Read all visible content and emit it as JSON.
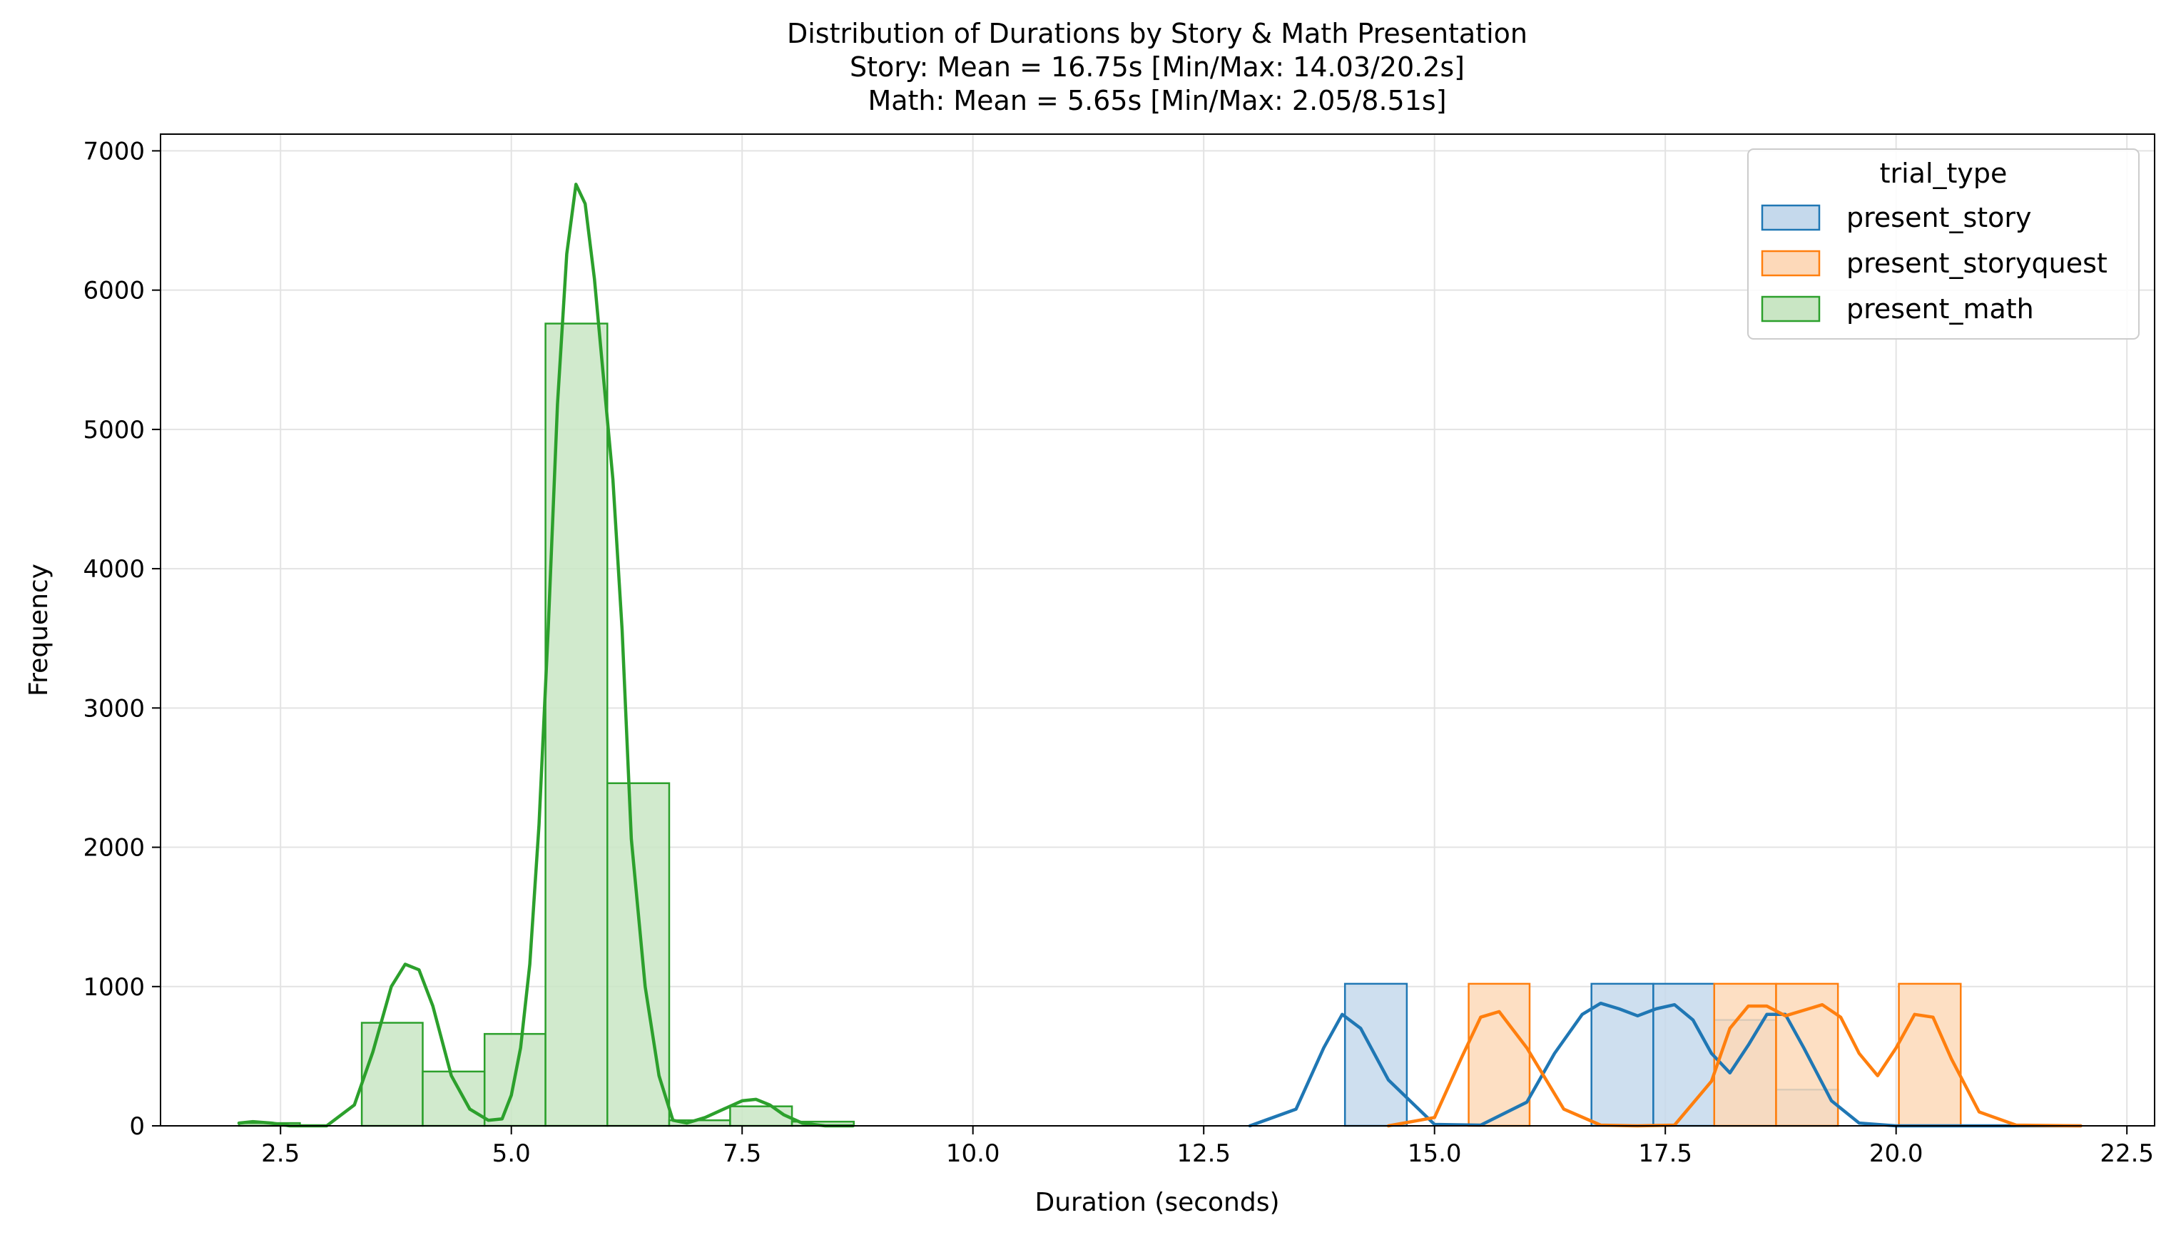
{
  "chart_data": {
    "type": "histogram",
    "title": "Distribution of Durations by Story & Math Presentation",
    "subtitle_lines": [
      "Story: Mean = 16.75s [Min/Max: 14.03/20.2s]",
      "Math: Mean = 5.65s [Min/Max: 2.05/8.51s]"
    ],
    "xlabel": "Duration (seconds)",
    "ylabel": "Frequency",
    "xlim": [
      1.2,
      22.8
    ],
    "ylim": [
      0,
      7120
    ],
    "xticks": [
      2.5,
      5.0,
      7.5,
      10.0,
      12.5,
      15.0,
      17.5,
      20.0,
      22.5
    ],
    "xtick_labels": [
      "2.5",
      "5.0",
      "7.5",
      "10.0",
      "12.5",
      "15.0",
      "17.5",
      "20.0",
      "22.5"
    ],
    "yticks": [
      0,
      1000,
      2000,
      3000,
      4000,
      5000,
      6000,
      7000
    ],
    "ytick_labels": [
      "0",
      "1000",
      "2000",
      "3000",
      "4000",
      "5000",
      "6000",
      "7000"
    ],
    "grid": true,
    "legend": {
      "title": "trial_type",
      "placement": "top-right",
      "entries": [
        "present_story",
        "present_storyquest",
        "present_math"
      ]
    },
    "series": [
      {
        "name": "present_story",
        "color": "#1f77b4",
        "fill": "#c5d9ec",
        "bins": [
          {
            "x0": 14.03,
            "x1": 14.7,
            "count": 1020
          },
          {
            "x0": 16.7,
            "x1": 17.37,
            "count": 1020
          },
          {
            "x0": 17.37,
            "x1": 18.03,
            "count": 1020
          },
          {
            "x0": 18.03,
            "x1": 18.7,
            "count": 760
          },
          {
            "x0": 18.7,
            "x1": 19.37,
            "count": 260
          }
        ],
        "kde_x": [
          13.0,
          13.5,
          13.8,
          14.0,
          14.2,
          14.5,
          15.0,
          15.5,
          16.0,
          16.3,
          16.6,
          16.8,
          17.0,
          17.2,
          17.4,
          17.6,
          17.8,
          18.0,
          18.2,
          18.4,
          18.6,
          18.8,
          19.0,
          19.3,
          19.6,
          20.0,
          21.0,
          22.0
        ],
        "kde_y": [
          0,
          120,
          560,
          800,
          700,
          330,
          10,
          5,
          170,
          520,
          800,
          880,
          840,
          790,
          840,
          870,
          760,
          520,
          380,
          580,
          800,
          800,
          560,
          180,
          20,
          0,
          0,
          0
        ]
      },
      {
        "name": "present_storyquest",
        "color": "#ff7f0e",
        "fill": "#fdd9b9",
        "bins": [
          {
            "x0": 15.37,
            "x1": 16.03,
            "count": 1020
          },
          {
            "x0": 18.03,
            "x1": 18.7,
            "count": 1020
          },
          {
            "x0": 18.7,
            "x1": 19.37,
            "count": 1020
          },
          {
            "x0": 20.03,
            "x1": 20.7,
            "count": 1020
          }
        ],
        "kde_x": [
          14.5,
          15.0,
          15.3,
          15.5,
          15.7,
          16.0,
          16.4,
          16.8,
          17.2,
          17.6,
          18.0,
          18.2,
          18.4,
          18.6,
          18.8,
          19.0,
          19.2,
          19.4,
          19.6,
          19.8,
          20.0,
          20.2,
          20.4,
          20.6,
          20.9,
          21.3,
          22.0
        ],
        "kde_y": [
          0,
          60,
          500,
          780,
          820,
          560,
          120,
          5,
          0,
          5,
          320,
          700,
          860,
          860,
          790,
          830,
          870,
          780,
          520,
          360,
          560,
          800,
          780,
          480,
          100,
          5,
          0
        ]
      },
      {
        "name": "present_math",
        "color": "#2ca02c",
        "fill": "#c9e6c4",
        "bins": [
          {
            "x0": 2.05,
            "x1": 2.71,
            "count": 20
          },
          {
            "x0": 3.38,
            "x1": 4.04,
            "count": 740
          },
          {
            "x0": 4.04,
            "x1": 4.71,
            "count": 390
          },
          {
            "x0": 4.71,
            "x1": 5.37,
            "count": 660
          },
          {
            "x0": 5.37,
            "x1": 6.04,
            "count": 5760
          },
          {
            "x0": 6.04,
            "x1": 6.71,
            "count": 2460
          },
          {
            "x0": 6.71,
            "x1": 7.37,
            "count": 40
          },
          {
            "x0": 7.37,
            "x1": 8.04,
            "count": 140
          },
          {
            "x0": 8.04,
            "x1": 8.71,
            "count": 30
          }
        ],
        "kde_x": [
          2.05,
          2.2,
          2.4,
          2.6,
          3.0,
          3.3,
          3.5,
          3.7,
          3.85,
          4.0,
          4.15,
          4.35,
          4.55,
          4.75,
          4.9,
          5.0,
          5.1,
          5.2,
          5.3,
          5.4,
          5.5,
          5.6,
          5.7,
          5.8,
          5.9,
          6.0,
          6.1,
          6.2,
          6.3,
          6.45,
          6.6,
          6.75,
          6.9,
          7.1,
          7.3,
          7.5,
          7.65,
          7.8,
          7.95,
          8.15,
          8.4,
          8.7
        ],
        "kde_y": [
          20,
          30,
          20,
          0,
          0,
          150,
          530,
          1000,
          1160,
          1120,
          860,
          360,
          120,
          40,
          50,
          220,
          560,
          1160,
          2160,
          3580,
          5180,
          6260,
          6760,
          6620,
          6080,
          5360,
          4640,
          3560,
          2060,
          1000,
          360,
          40,
          20,
          60,
          120,
          180,
          190,
          150,
          80,
          20,
          0,
          0
        ]
      }
    ]
  }
}
